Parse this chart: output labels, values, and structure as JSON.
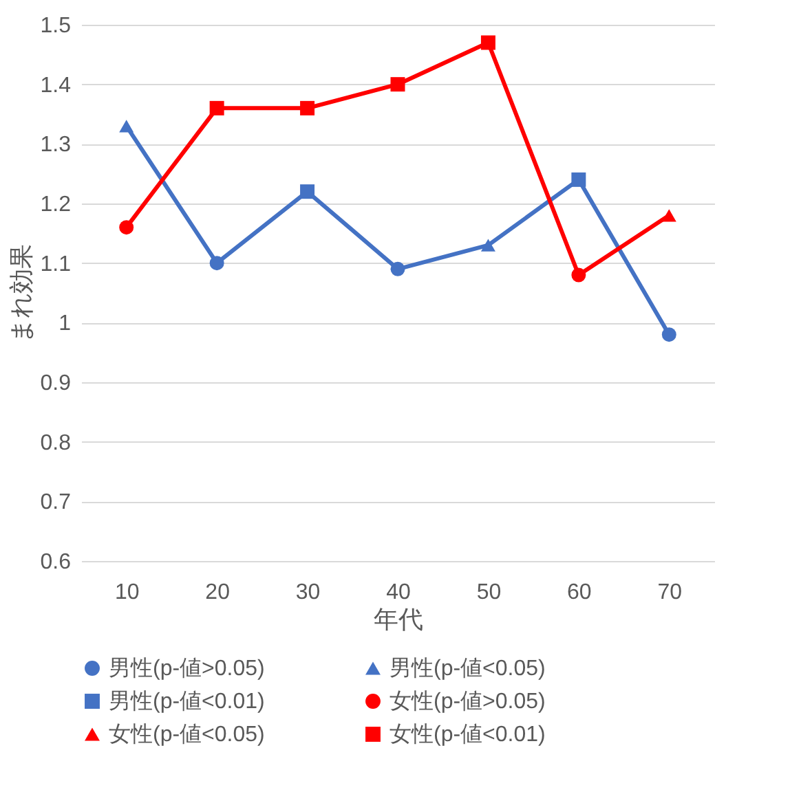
{
  "chart_data": {
    "type": "line",
    "xlabel": "年代",
    "ylabel": "まれ効果",
    "categories": [
      "10",
      "20",
      "30",
      "40",
      "50",
      "60",
      "70"
    ],
    "ylim": [
      0.6,
      1.5
    ],
    "yticks": [
      0.6,
      0.7,
      0.8,
      0.9,
      1,
      1.1,
      1.2,
      1.3,
      1.4,
      1.5
    ],
    "grid": "y",
    "legend": "bottom",
    "line_style": "solid",
    "series": [
      {
        "color": "#4472c4",
        "marker": "none",
        "values": [
          1.33,
          1.1,
          1.22,
          1.09,
          1.13,
          1.24,
          0.98
        ]
      },
      {
        "color": "#ff0000",
        "marker": "none",
        "values": [
          1.16,
          1.36,
          1.36,
          1.4,
          1.47,
          1.08,
          1.18
        ]
      },
      {
        "type": "scatter",
        "name": "男性(p-値>0.05)",
        "color": "#4472c4",
        "marker": "circle",
        "values": [
          null,
          1.1,
          null,
          1.09,
          null,
          null,
          0.98
        ]
      },
      {
        "type": "scatter",
        "name": "男性(p-値<0.05)",
        "color": "#4472c4",
        "marker": "triangle",
        "values": [
          1.33,
          null,
          null,
          null,
          1.13,
          null,
          null
        ]
      },
      {
        "type": "scatter",
        "name": "男性(p-値<0.01)",
        "color": "#4472c4",
        "marker": "square",
        "values": [
          null,
          null,
          1.22,
          null,
          null,
          1.24,
          null
        ]
      },
      {
        "type": "scatter",
        "name": "女性(p-値>0.05)",
        "color": "#ff0000",
        "marker": "circle",
        "values": [
          1.16,
          null,
          null,
          null,
          null,
          1.08,
          null
        ]
      },
      {
        "type": "scatter",
        "name": "女性(p-値<0.05)",
        "color": "#ff0000",
        "marker": "triangle",
        "values": [
          null,
          null,
          null,
          null,
          null,
          null,
          1.18
        ]
      },
      {
        "type": "scatter",
        "name": "女性(p-値<0.01)",
        "color": "#ff0000",
        "marker": "square",
        "values": [
          null,
          1.36,
          1.36,
          1.4,
          1.47,
          null,
          null
        ]
      }
    ]
  }
}
